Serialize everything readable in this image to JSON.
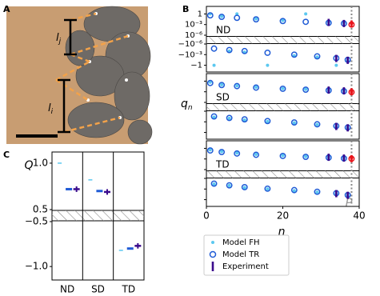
{
  "panel_labels": [
    "A",
    "B",
    "C"
  ],
  "photo": {
    "length_labels": [
      {
        "symbol": "l",
        "sub": "j"
      },
      {
        "symbol": "l",
        "sub": "i"
      }
    ]
  },
  "chart_data": [
    {
      "type": "symlog_panels",
      "ylabel": "q",
      "ylabel_sub": "n",
      "xlabel": "n",
      "xlim": [
        0,
        40
      ],
      "xticks": [
        0,
        20,
        40
      ],
      "ylim": [
        -80,
        80
      ],
      "linthresh": 1e-06,
      "yticks": [
        1,
        {
          "value": 0.001,
          "label": "10⁻³"
        },
        {
          "value": 1e-06,
          "label": "10⁻⁶"
        },
        {
          "value": -1e-06,
          "label": "−10⁻⁶"
        },
        {
          "value": -0.001,
          "label": "−10⁻³"
        },
        {
          "value": -1,
          "label": "−1"
        }
      ],
      "vline": 38,
      "annotation": "P",
      "highlight_color": "#e8141b",
      "series": [
        {
          "name": "Model FH",
          "color": "#5bc8f0",
          "marker": "dot"
        },
        {
          "name": "Model TR",
          "color": "#1f5bd6",
          "marker": "ring"
        },
        {
          "name": "Experiment",
          "color": "#3a0a8c",
          "marker": "bar"
        }
      ],
      "x": [
        1,
        2,
        4,
        6,
        8,
        10,
        13,
        16,
        20,
        23,
        26,
        29,
        32,
        34,
        36,
        37,
        38
      ],
      "panels": [
        {
          "label": "ND",
          "values": [
            [
              1,
              -1,
              0.2,
              -0.0001,
              1,
              -0.0002,
              0.04,
              -1,
              0.015,
              -0.002,
              1,
              -0.005,
              0.004,
              -1,
              0.003,
              -0.05,
              0.002
            ],
            [
              0.4,
              -2e-05,
              0.15,
              -5e-05,
              0.08,
              -0.0001,
              0.03,
              -0.0003,
              0.01,
              -0.001,
              0.006,
              -0.003,
              0.003,
              -0.01,
              0.002,
              -0.03,
              0.001
            ],
            [
              null,
              null,
              null,
              null,
              null,
              null,
              null,
              null,
              null,
              null,
              null,
              null,
              0.004,
              -0.012,
              0.002,
              -0.04,
              0.0015
            ]
          ]
        },
        {
          "label": "SD",
          "values": [
            [
              0.5,
              -5e-05,
              0.1,
              -0.0001,
              0.05,
              -0.0003,
              0.02,
              -0.0008,
              0.008,
              -0.002,
              0.005,
              -0.006,
              0.003,
              -0.02,
              0.002,
              -0.05,
              0.001
            ],
            [
              0.3,
              -3e-05,
              0.08,
              -8e-05,
              0.04,
              -0.0002,
              0.015,
              -0.0006,
              0.007,
              -0.0015,
              0.004,
              -0.005,
              0.0025,
              -0.015,
              0.0015,
              -0.04,
              0.0008
            ],
            [
              null,
              null,
              null,
              null,
              null,
              null,
              null,
              null,
              null,
              null,
              null,
              null,
              0.003,
              -0.02,
              0.0018,
              -0.05,
              0.001
            ]
          ]
        },
        {
          "label": "TD",
          "values": [
            [
              0.4,
              -4e-05,
              0.12,
              -0.0001,
              0.05,
              -0.0004,
              0.02,
              -0.001,
              0.009,
              -0.003,
              0.005,
              -0.008,
              0.003,
              -0.02,
              0.002,
              -0.06,
              0.002
            ],
            [
              0.25,
              -3e-05,
              0.09,
              -9e-05,
              0.035,
              -0.0003,
              0.015,
              -0.0008,
              0.007,
              -0.002,
              0.004,
              -0.006,
              0.0025,
              -0.015,
              0.0015,
              -0.05,
              0.0012
            ],
            [
              null,
              null,
              null,
              null,
              null,
              null,
              null,
              null,
              null,
              null,
              null,
              null,
              0.003,
              -0.02,
              0.0018,
              -0.06,
              0.0012
            ]
          ]
        }
      ]
    },
    {
      "type": "dot",
      "ylabel": "Q",
      "categories": [
        "ND",
        "SD",
        "TD"
      ],
      "ylim": [
        -1.15,
        1.12
      ],
      "axis_break": [
        -0.5,
        0.5
      ],
      "yticks": [
        {
          "value": 1,
          "label": "1.0"
        },
        0.5,
        {
          "value": -0.5,
          "label": "−0.5"
        },
        {
          "value": -1,
          "label": "−1.0"
        }
      ],
      "series": [
        {
          "color": "#5bc8f0",
          "marker": "dash",
          "values": [
            1.0,
            0.82,
            -0.82
          ]
        },
        {
          "color": "#1f5bd6",
          "marker": "thick",
          "values": [
            0.72,
            0.7,
            -0.8
          ]
        },
        {
          "color": "#3a0a8c",
          "marker": "errorbar",
          "values": [
            0.72,
            0.69,
            -0.77
          ],
          "errors": [
            0.03,
            0.03,
            0.03
          ]
        }
      ]
    }
  ]
}
